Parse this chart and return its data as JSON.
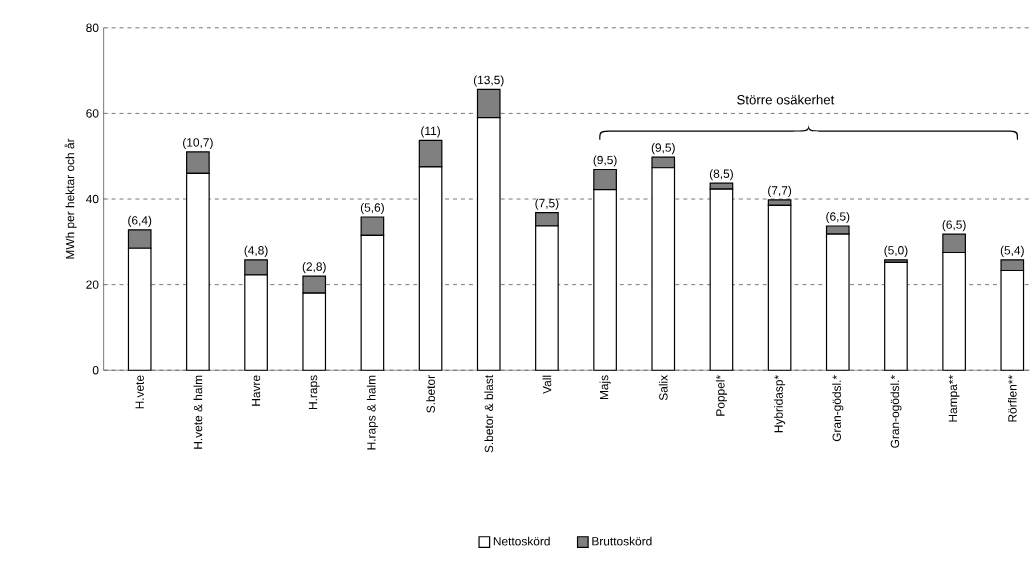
{
  "chart_data": {
    "type": "bar",
    "stacked": true,
    "ylabel": "MWh per hektar och år",
    "categories": [
      "H.vete",
      "H.vete & halm",
      "Havre",
      "H.raps",
      "H.raps & halm",
      "S.betor",
      "S.betor & blast",
      "Vall",
      "Majs",
      "Salix",
      "Poppel*",
      "Hybridasp*",
      "Gran-gödsl.*",
      "Gran-ogödsl.*",
      "Hampa**",
      "Rörflen**"
    ],
    "series": [
      {
        "name": "Nettoskörd",
        "color": "#ffffff",
        "values": [
          28.5,
          46,
          22.3,
          18,
          31.5,
          47.5,
          59,
          33.7,
          42.2,
          47.3,
          42.3,
          38.5,
          31.8,
          25.2,
          27.5,
          23.3
        ]
      },
      {
        "name": "Bruttoskörd",
        "color": "#808080",
        "values": [
          4.3,
          5,
          3.5,
          4,
          4.3,
          6.2,
          6.6,
          3.1,
          4.7,
          2.5,
          1.4,
          1.3,
          1.9,
          0.6,
          4.3,
          2.5
        ]
      }
    ],
    "ylim": [
      0,
      80
    ],
    "yticks": [
      0,
      20,
      40,
      60,
      80
    ],
    "grid": "y",
    "line_style": "dashed",
    "legend": "bottom",
    "annotations": [
      {
        "text": "(6,4)",
        "x": "H.vete",
        "y": 32.8
      },
      {
        "text": "(10,7)",
        "x": "H.vete & halm",
        "y": 51
      },
      {
        "text": "(4,8)",
        "x": "Havre",
        "y": 25.8
      },
      {
        "text": "(2,8)",
        "x": "H.raps",
        "y": 22
      },
      {
        "text": "(5,6)",
        "x": "H.raps & halm",
        "y": 35.8
      },
      {
        "text": "(11)",
        "x": "S.betor",
        "y": 53.7
      },
      {
        "text": "(13,5)",
        "x": "S.betor & blast",
        "y": 65.6
      },
      {
        "text": "(7,5)",
        "x": "Vall",
        "y": 36.8
      },
      {
        "text": "(9,5)",
        "x": "Majs",
        "y": 46.9
      },
      {
        "text": "(9,5)",
        "x": "Salix",
        "y": 49.8
      },
      {
        "text": "(8,5)",
        "x": "Poppel*",
        "y": 43.7
      },
      {
        "text": "(7,7)",
        "x": "Hybridasp*",
        "y": 39.8
      },
      {
        "text": "(6,5)",
        "x": "Gran-gödsl.*",
        "y": 33.7
      },
      {
        "text": "(5,0)",
        "x": "Gran-ogödsl.*",
        "y": 25.8
      },
      {
        "text": "(6,5)",
        "x": "Hampa**",
        "y": 31.8
      },
      {
        "text": "(5,4)",
        "x": "Rörflen**",
        "y": 25.8
      },
      "Större osäkerhet"
    ]
  }
}
